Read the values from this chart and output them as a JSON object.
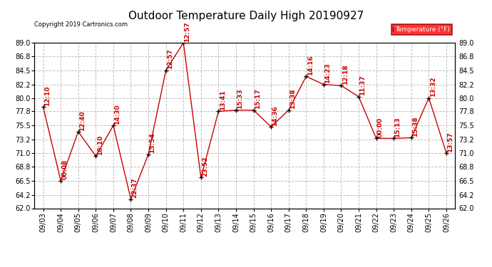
{
  "title": "Outdoor Temperature Daily High 20190927",
  "copyright": "Copyright 2019 Cartronics.com",
  "legend_label": "Temperature (°F)",
  "dates": [
    "09/03",
    "09/04",
    "09/05",
    "09/06",
    "09/07",
    "09/08",
    "09/09",
    "09/10",
    "09/11",
    "09/12",
    "09/13",
    "09/14",
    "09/15",
    "09/16",
    "09/17",
    "09/18",
    "09/19",
    "09/20",
    "09/21",
    "09/22",
    "09/23",
    "09/24",
    "09/25",
    "09/26"
  ],
  "values": [
    78.5,
    66.5,
    74.5,
    70.5,
    75.5,
    63.5,
    70.8,
    84.5,
    89.0,
    67.0,
    77.8,
    78.0,
    78.0,
    75.3,
    78.0,
    83.5,
    82.2,
    82.0,
    80.2,
    73.4,
    73.4,
    73.5,
    80.0,
    71.0
  ],
  "times": [
    "12:10",
    "00:08",
    "12:40",
    "10:10",
    "14:30",
    "22:37",
    "15:54",
    "12:57",
    "12:57",
    "23:52",
    "13:41",
    "15:33",
    "15:17",
    "14:36",
    "13:38",
    "14:16",
    "14:23",
    "12:18",
    "11:37",
    "00:00",
    "15:13",
    "15:38",
    "13:32",
    "13:57"
  ],
  "ylim_min": 62.0,
  "ylim_max": 89.0,
  "yticks": [
    62.0,
    64.2,
    66.5,
    68.8,
    71.0,
    73.2,
    75.5,
    77.8,
    80.0,
    82.2,
    84.5,
    86.8,
    89.0
  ],
  "line_color": "#cc0000",
  "marker_color": "#000000",
  "bg_color": "#ffffff",
  "grid_color": "#c0c0c0",
  "title_fontsize": 11,
  "annotation_fontsize": 6.5,
  "tick_fontsize": 7.0
}
